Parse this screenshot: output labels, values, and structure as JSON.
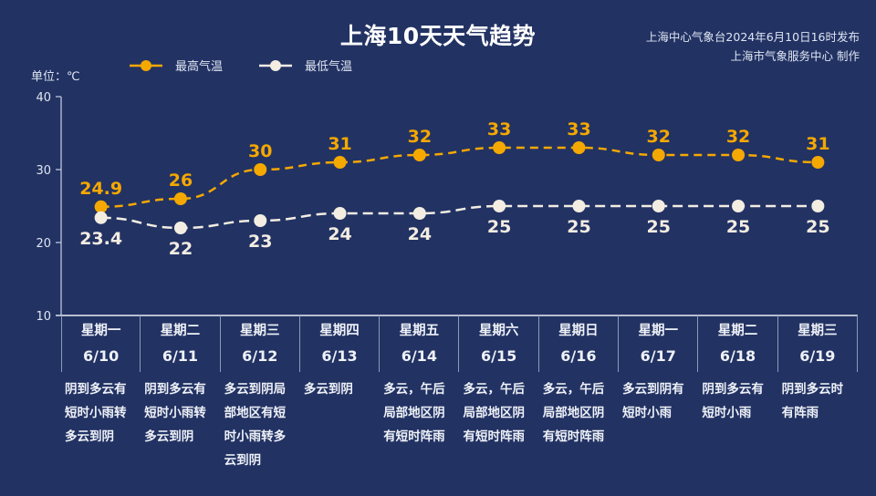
{
  "header": {
    "title": "上海10天天气趋势",
    "source_line1": "上海中心气象台2024年6月10日16时发布",
    "source_line2": "上海市气象服务中心 制作",
    "unit_label": "单位：℃"
  },
  "legend": {
    "high_label": "最高气温",
    "low_label": "最低气温",
    "high_color": "#f5a800",
    "low_color": "#f3ede2"
  },
  "axis": {
    "ticks": [
      "40",
      "30",
      "20",
      "10"
    ]
  },
  "days": [
    {
      "weekday": "星期一",
      "date": "6/10",
      "desc": "阴到多云有短时小雨转多云到阴"
    },
    {
      "weekday": "星期二",
      "date": "6/11",
      "desc": "阴到多云有短时小雨转多云到阴"
    },
    {
      "weekday": "星期三",
      "date": "6/12",
      "desc": "多云到阴局部地区有短时小雨转多云到阴"
    },
    {
      "weekday": "星期四",
      "date": "6/13",
      "desc": "多云到阴"
    },
    {
      "weekday": "星期五",
      "date": "6/14",
      "desc": "多云，午后局部地区阴有短时阵雨"
    },
    {
      "weekday": "星期六",
      "date": "6/15",
      "desc": "多云，午后局部地区阴有短时阵雨"
    },
    {
      "weekday": "星期日",
      "date": "6/16",
      "desc": "多云，午后局部地区阴有短时阵雨"
    },
    {
      "weekday": "星期一",
      "date": "6/17",
      "desc": "多云到阴有短时小雨"
    },
    {
      "weekday": "星期二",
      "date": "6/18",
      "desc": "阴到多云有短时小雨"
    },
    {
      "weekday": "星期三",
      "date": "6/19",
      "desc": "阴到多云时有阵雨"
    }
  ],
  "chart_data": {
    "type": "line",
    "title": "上海10天天气趋势",
    "xlabel": "",
    "ylabel": "单位：℃",
    "ylim": [
      10,
      40
    ],
    "yticks": [
      10,
      20,
      30,
      40
    ],
    "categories": [
      "6/10",
      "6/11",
      "6/12",
      "6/13",
      "6/14",
      "6/15",
      "6/16",
      "6/17",
      "6/18",
      "6/19"
    ],
    "series": [
      {
        "name": "最高气温",
        "color": "#f5a800",
        "values": [
          24.9,
          26,
          30,
          31,
          32,
          33,
          33,
          32,
          32,
          31
        ]
      },
      {
        "name": "最低气温",
        "color": "#f3ede2",
        "values": [
          23.4,
          22,
          23,
          24,
          24,
          25,
          25,
          25,
          25,
          25
        ]
      }
    ],
    "legend_position": "top-left",
    "grid": false
  }
}
